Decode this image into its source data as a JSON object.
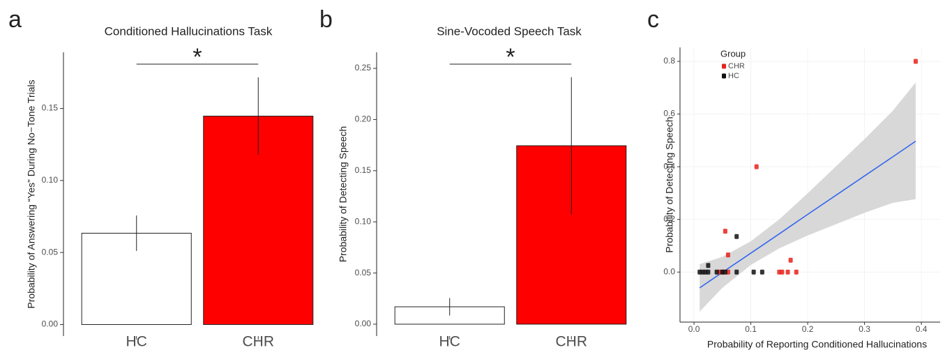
{
  "chart_data": [
    {
      "type": "bar",
      "panel": "a",
      "title": "Conditioned Hallucinations Task",
      "ylabel": "Probability of Answering “Yes” During No−Tone Trials",
      "categories": [
        "HC",
        "CHR"
      ],
      "values": [
        0.0634,
        0.1447
      ],
      "errors": [
        0.0123,
        0.0269
      ],
      "colors": [
        "#ffffff",
        "#ff0000"
      ],
      "significance": "*",
      "ylim": [
        -0.008,
        0.189
      ],
      "yticks": [
        {
          "value": 0,
          "label": "0.00"
        },
        {
          "value": 0.05,
          "label": "0.05"
        },
        {
          "value": 0.1,
          "label": "0.10"
        },
        {
          "value": 0.15,
          "label": "0.15"
        }
      ]
    },
    {
      "type": "bar",
      "panel": "b",
      "title": "Sine-Vocoded Speech Task",
      "ylabel": "Probability of Detecting Speech",
      "categories": [
        "HC",
        "CHR"
      ],
      "values": [
        0.017,
        0.1744
      ],
      "errors": [
        0.0085,
        0.067
      ],
      "colors": [
        "#ffffff",
        "#ff0000"
      ],
      "significance": "*",
      "ylim": [
        -0.0116,
        0.2657
      ],
      "yticks": [
        {
          "value": 0,
          "label": "0.00"
        },
        {
          "value": 0.05,
          "label": "0.05"
        },
        {
          "value": 0.1,
          "label": "0.10"
        },
        {
          "value": 0.15,
          "label": "0.15"
        },
        {
          "value": 0.2,
          "label": "0.20"
        },
        {
          "value": 0.25,
          "label": "0.25"
        }
      ]
    },
    {
      "type": "scatter",
      "panel": "c",
      "xlabel": "Probability of Reporting Conditioned Hallucinations",
      "ylabel": "Probability of Detecting Speech",
      "legend_title": "Group",
      "series": [
        {
          "name": "CHR",
          "color": "#e8211c",
          "x": [
            0.39,
            0.11,
            0.055,
            0.06,
            0.17,
            0.045,
            0.05,
            0.06,
            0.15,
            0.155,
            0.165,
            0.18
          ],
          "values": [
            0.8,
            0.4,
            0.155,
            0.065,
            0.045,
            0,
            0,
            0,
            0,
            0,
            0,
            0
          ]
        },
        {
          "name": "HC",
          "color": "#111111",
          "x": [
            0.075,
            0.025,
            0.01,
            0.015,
            0.02,
            0.025,
            0.04,
            0.05,
            0.055,
            0.075,
            0.105,
            0.12
          ],
          "values": [
            0.135,
            0.025,
            0,
            0,
            0,
            0,
            0,
            0,
            0,
            0,
            0,
            0
          ]
        }
      ],
      "fit": {
        "color": "#3366ee",
        "band_color": "#d4d4d4",
        "x": [
          0.01,
          0.05,
          0.1,
          0.15,
          0.2,
          0.25,
          0.3,
          0.35,
          0.39
        ],
        "values": [
          -0.06,
          -0.001,
          0.072,
          0.145,
          0.219,
          0.292,
          0.365,
          0.438,
          0.497
        ],
        "lower": [
          -0.15,
          -0.06,
          0.027,
          0.09,
          0.139,
          0.182,
          0.225,
          0.263,
          0.277
        ],
        "upper": [
          0.03,
          0.058,
          0.117,
          0.2,
          0.299,
          0.402,
          0.505,
          0.613,
          0.72
        ]
      },
      "xlim": [
        -0.0246,
        0.433
      ],
      "ylim": [
        -0.19,
        0.853
      ],
      "xticks": [
        {
          "value": 0,
          "label": "0.0"
        },
        0.1,
        0.2,
        0.3,
        0.4
      ],
      "yticks": [
        {
          "value": 0,
          "label": "0.0"
        },
        0.2,
        0.4,
        0.6,
        0.8
      ],
      "grid": true
    }
  ]
}
